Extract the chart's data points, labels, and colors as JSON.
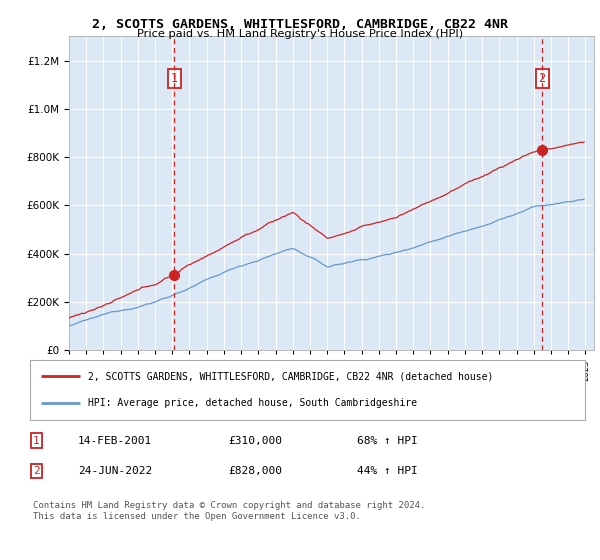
{
  "title": "2, SCOTTS GARDENS, WHITTLESFORD, CAMBRIDGE, CB22 4NR",
  "subtitle": "Price paid vs. HM Land Registry's House Price Index (HPI)",
  "background_color": "#ffffff",
  "plot_bg_color": "#dce8f5",
  "grid_color": "#ffffff",
  "red_color": "#cc2222",
  "blue_color": "#6699cc",
  "sale1_date": 2001.12,
  "sale1_price": 310000,
  "sale2_date": 2022.48,
  "sale2_price": 828000,
  "legend_line1": "2, SCOTTS GARDENS, WHITTLESFORD, CAMBRIDGE, CB22 4NR (detached house)",
  "legend_line2": "HPI: Average price, detached house, South Cambridgeshire",
  "copyright": "Contains HM Land Registry data © Crown copyright and database right 2024.\nThis data is licensed under the Open Government Licence v3.0.",
  "xmin": 1995.0,
  "xmax": 2025.5,
  "ymin": 0,
  "ymax": 1300000,
  "yticks": [
    0,
    200000,
    400000,
    600000,
    800000,
    1000000,
    1200000
  ]
}
